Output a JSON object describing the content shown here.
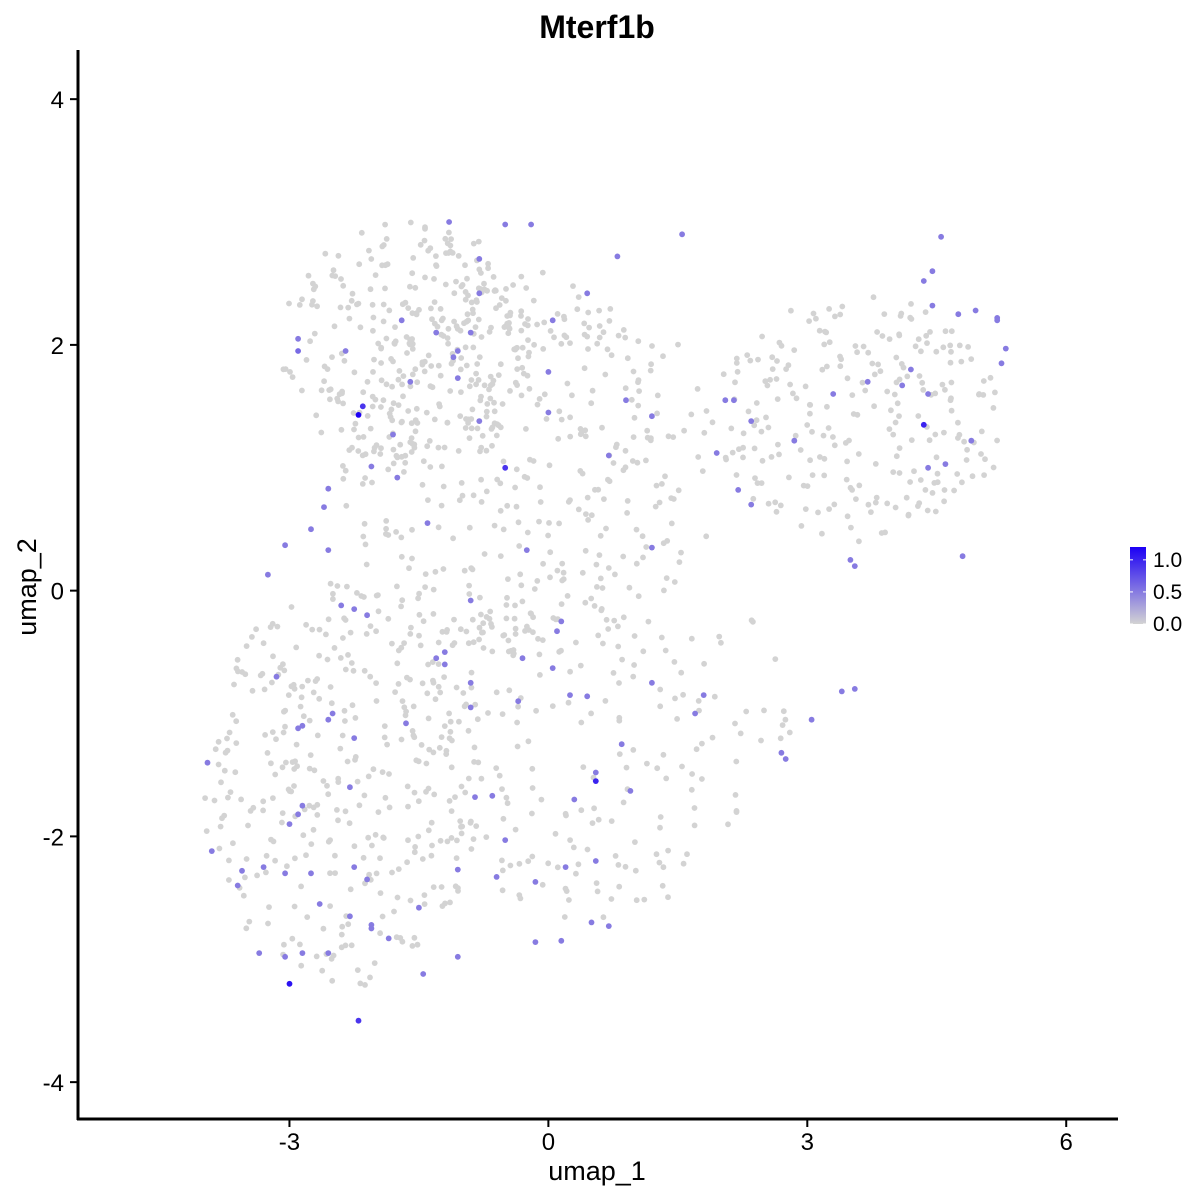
{
  "chart_data": {
    "type": "scatter",
    "title": "Mterf1b",
    "xlabel": "umap_1",
    "ylabel": "umap_2",
    "xlim": [
      -5.45,
      6.6
    ],
    "ylim": [
      -4.3,
      4.4
    ],
    "xticks": [
      -3,
      0,
      3,
      6
    ],
    "yticks": [
      -4,
      -2,
      0,
      2,
      4
    ],
    "xtick_labels": [
      "-3",
      "0",
      "3",
      "6"
    ],
    "ytick_labels": [
      "-4",
      "-2",
      "0",
      "2",
      "4"
    ],
    "grid": false,
    "legend_position": "right",
    "colors": {
      "low": "#d3d3d3",
      "high": "#1c00f5"
    },
    "legend": {
      "breaks": [
        0.0,
        0.5,
        1.0
      ],
      "labels": [
        "0.0",
        "0.5",
        "1.0"
      ],
      "range": [
        0.0,
        1.2
      ]
    },
    "n_background_cells": 1450,
    "expressing_points": [
      [
        -2.2,
        1.43,
        1.25
      ],
      [
        -2.15,
        1.5,
        0.9
      ],
      [
        -3.0,
        -3.2,
        1.1
      ],
      [
        -2.2,
        -3.5,
        0.9
      ],
      [
        4.35,
        1.35,
        1.0
      ],
      [
        0.55,
        -1.55,
        1.0
      ],
      [
        -0.5,
        1.0,
        0.9
      ],
      [
        -2.9,
        2.05,
        0.5
      ],
      [
        -2.9,
        1.95,
        0.6
      ],
      [
        -1.7,
        2.2,
        0.5
      ],
      [
        -1.1,
        1.9,
        0.5
      ],
      [
        -0.9,
        2.1,
        0.5
      ],
      [
        -0.5,
        2.98,
        0.5
      ],
      [
        -0.2,
        2.98,
        0.5
      ],
      [
        -1.15,
        3.0,
        0.5
      ],
      [
        1.55,
        2.9,
        0.5
      ],
      [
        0.8,
        2.72,
        0.5
      ],
      [
        -0.8,
        2.7,
        0.5
      ],
      [
        0.05,
        2.2,
        0.5
      ],
      [
        0.45,
        2.42,
        0.5
      ],
      [
        -0.8,
        2.42,
        0.5
      ],
      [
        -1.3,
        2.1,
        0.5
      ],
      [
        -2.35,
        1.95,
        0.5
      ],
      [
        -1.6,
        1.7,
        0.5
      ],
      [
        -1.05,
        1.73,
        0.5
      ],
      [
        0.0,
        1.78,
        0.5
      ],
      [
        0.0,
        1.45,
        0.5
      ],
      [
        0.9,
        1.55,
        0.5
      ],
      [
        1.2,
        1.42,
        0.5
      ],
      [
        2.05,
        1.55,
        0.5
      ],
      [
        2.35,
        1.38,
        0.5
      ],
      [
        2.85,
        1.22,
        0.5
      ],
      [
        -0.8,
        1.38,
        0.5
      ],
      [
        -1.8,
        1.27,
        0.5
      ],
      [
        -2.05,
        1.01,
        0.5
      ],
      [
        -1.75,
        0.92,
        0.5
      ],
      [
        -2.6,
        0.68,
        0.5
      ],
      [
        -2.55,
        0.83,
        0.5
      ],
      [
        -2.75,
        0.5,
        0.5
      ],
      [
        -3.05,
        0.37,
        0.5
      ],
      [
        -2.55,
        0.33,
        0.5
      ],
      [
        -3.25,
        0.13,
        0.5
      ],
      [
        -1.4,
        0.55,
        0.5
      ],
      [
        -0.25,
        0.33,
        0.5
      ],
      [
        0.7,
        1.1,
        0.5
      ],
      [
        1.2,
        0.35,
        0.5
      ],
      [
        2.2,
        0.82,
        0.5
      ],
      [
        2.35,
        0.7,
        0.5
      ],
      [
        1.95,
        1.12,
        0.5
      ],
      [
        2.15,
        1.55,
        0.5
      ],
      [
        3.3,
        1.6,
        0.5
      ],
      [
        3.7,
        1.7,
        0.5
      ],
      [
        4.1,
        1.67,
        0.5
      ],
      [
        4.2,
        1.8,
        0.5
      ],
      [
        4.4,
        1.6,
        0.5
      ],
      [
        4.35,
        2.52,
        0.5
      ],
      [
        4.45,
        2.6,
        0.5
      ],
      [
        4.45,
        2.32,
        0.5
      ],
      [
        4.55,
        2.88,
        0.5
      ],
      [
        4.75,
        2.25,
        0.5
      ],
      [
        4.95,
        2.28,
        0.5
      ],
      [
        5.2,
        2.22,
        0.5
      ],
      [
        5.2,
        2.2,
        0.5
      ],
      [
        5.3,
        1.97,
        0.5
      ],
      [
        5.25,
        1.85,
        0.5
      ],
      [
        4.9,
        1.22,
        0.5
      ],
      [
        4.4,
        1.0,
        0.5
      ],
      [
        4.6,
        1.03,
        0.5
      ],
      [
        4.8,
        0.28,
        0.5
      ],
      [
        3.5,
        0.25,
        0.5
      ],
      [
        3.55,
        0.2,
        0.5
      ],
      [
        3.4,
        -0.82,
        0.5
      ],
      [
        3.55,
        -0.8,
        0.5
      ],
      [
        3.05,
        -1.05,
        0.5
      ],
      [
        2.75,
        -1.37,
        0.5
      ],
      [
        1.8,
        -0.85,
        0.5
      ],
      [
        1.2,
        -0.75,
        0.5
      ],
      [
        0.25,
        -0.85,
        0.5
      ],
      [
        0.05,
        -0.63,
        0.5
      ],
      [
        0.1,
        -0.33,
        0.5
      ],
      [
        0.15,
        -0.25,
        0.5
      ],
      [
        -0.3,
        -0.55,
        0.5
      ],
      [
        -0.9,
        -0.08,
        0.5
      ],
      [
        -1.3,
        -0.55,
        0.5
      ],
      [
        -1.2,
        -0.6,
        0.5
      ],
      [
        -1.2,
        -0.5,
        0.5
      ],
      [
        -0.9,
        -0.75,
        0.5
      ],
      [
        -0.35,
        -0.9,
        0.5
      ],
      [
        -2.25,
        -0.15,
        0.5
      ],
      [
        -2.4,
        -0.12,
        0.5
      ],
      [
        -2.1,
        -0.2,
        0.5
      ],
      [
        -3.15,
        -0.7,
        0.5
      ],
      [
        -2.55,
        -1.05,
        0.5
      ],
      [
        -2.85,
        -1.1,
        0.5
      ],
      [
        -2.9,
        -1.12,
        0.5
      ],
      [
        -2.25,
        -1.2,
        0.5
      ],
      [
        -2.3,
        -1.6,
        0.5
      ],
      [
        -2.85,
        -1.75,
        0.5
      ],
      [
        -2.9,
        -1.82,
        0.5
      ],
      [
        -3.0,
        -1.9,
        0.5
      ],
      [
        -3.05,
        -2.3,
        0.5
      ],
      [
        -2.75,
        -2.3,
        0.5
      ],
      [
        -2.25,
        -2.25,
        0.5
      ],
      [
        -2.1,
        -2.35,
        0.5
      ],
      [
        -2.05,
        -2.75,
        0.5
      ],
      [
        -2.65,
        -2.55,
        0.5
      ],
      [
        -2.85,
        -2.95,
        0.5
      ],
      [
        -3.05,
        -2.98,
        0.5
      ],
      [
        -3.35,
        -2.95,
        0.5
      ],
      [
        -3.55,
        -2.28,
        0.5
      ],
      [
        -3.6,
        -2.4,
        0.5
      ],
      [
        -3.3,
        -2.25,
        0.5
      ],
      [
        -3.9,
        -2.12,
        0.5
      ],
      [
        -3.95,
        -1.4,
        0.5
      ],
      [
        -2.55,
        -2.95,
        0.5
      ],
      [
        -2.3,
        -2.65,
        0.5
      ],
      [
        -1.45,
        -3.12,
        0.5
      ],
      [
        -1.05,
        -2.98,
        0.5
      ],
      [
        -1.05,
        -2.27,
        0.5
      ],
      [
        -0.6,
        -2.33,
        0.5
      ],
      [
        -0.5,
        -2.03,
        0.5
      ],
      [
        -0.85,
        -1.68,
        0.5
      ],
      [
        -0.65,
        -1.67,
        0.5
      ],
      [
        -0.15,
        -2.37,
        0.5
      ],
      [
        -0.15,
        -2.86,
        0.5
      ],
      [
        0.15,
        -2.85,
        0.5
      ],
      [
        0.2,
        -2.25,
        0.5
      ],
      [
        0.55,
        -2.2,
        0.5
      ],
      [
        0.5,
        -2.7,
        0.5
      ],
      [
        0.7,
        -2.73,
        0.5
      ],
      [
        0.3,
        -1.7,
        0.5
      ],
      [
        0.55,
        -1.48,
        0.5
      ],
      [
        0.85,
        -1.25,
        0.5
      ],
      [
        0.95,
        -1.63,
        0.5
      ],
      [
        1.7,
        -1.0,
        0.5
      ],
      [
        2.7,
        -1.32,
        0.5
      ],
      [
        -2.5,
        -1.0,
        0.5
      ],
      [
        -1.65,
        -1.08,
        0.5
      ],
      [
        -1.5,
        -2.58,
        0.5
      ],
      [
        -2.05,
        -2.72,
        0.5
      ],
      [
        -1.85,
        -2.83,
        0.5
      ],
      [
        0.45,
        -0.86,
        0.5
      ],
      [
        -0.9,
        -0.95,
        0.5
      ],
      [
        -1.05,
        1.95,
        0.5
      ]
    ]
  }
}
